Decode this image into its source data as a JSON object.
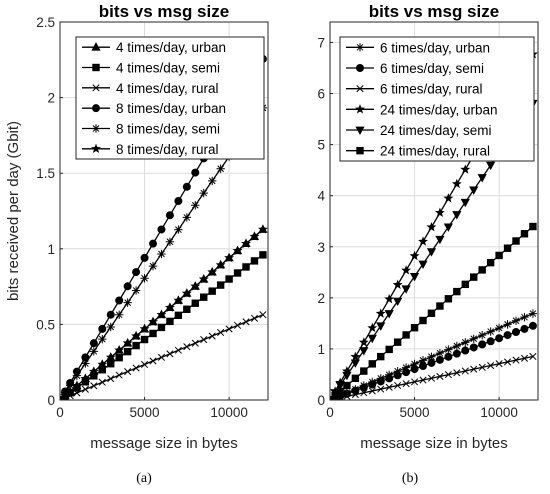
{
  "chart_data": [
    {
      "type": "line",
      "title": "bits vs msg size",
      "xlabel": "message size in bytes",
      "ylabel": "bits received per day (Gbit)",
      "xlim": [
        0,
        12300
      ],
      "ylim": [
        0,
        2.5
      ],
      "xticks": [
        0,
        5000,
        10000
      ],
      "xtick_labels": [
        "0",
        "5000",
        "10000"
      ],
      "yticks": [
        0,
        0.5,
        1,
        1.5,
        2,
        2.5
      ],
      "ytick_labels": [
        "0",
        "0.5",
        "1",
        "1.5",
        "2",
        "2.5"
      ],
      "grid": true,
      "legend_position": "top-right",
      "sublabel": "(a)",
      "series": [
        {
          "name": "4 times/day, urban",
          "marker": "triangle",
          "slope_per_10000": 0.94
        },
        {
          "name": "4 times/day, semi",
          "marker": "square",
          "slope_per_10000": 0.8
        },
        {
          "name": "4 times/day, rural",
          "marker": "x",
          "slope_per_10000": 0.47
        },
        {
          "name": "8 times/day, urban",
          "marker": "circle",
          "slope_per_10000": 1.88
        },
        {
          "name": "8 times/day, semi",
          "marker": "asterisk",
          "slope_per_10000": 1.61
        },
        {
          "name": "8 times/day, rural",
          "marker": "star",
          "slope_per_10000": 0.94
        }
      ],
      "x": [
        0,
        300,
        600,
        1000,
        1500,
        2000,
        2500,
        3000,
        3500,
        4000,
        4500,
        5000,
        5500,
        6000,
        6500,
        7000,
        7500,
        8000,
        8500,
        9000,
        9500,
        10000,
        10500,
        11000,
        11500,
        12000
      ]
    },
    {
      "type": "line",
      "title": "bits vs msg size",
      "xlabel": "message size in bytes",
      "ylabel": "",
      "xlim": [
        0,
        12300
      ],
      "ylim": [
        0,
        7.4
      ],
      "xticks": [
        0,
        5000,
        10000
      ],
      "xtick_labels": [
        "0",
        "5000",
        "10000"
      ],
      "yticks": [
        0,
        1,
        2,
        3,
        4,
        5,
        6,
        7
      ],
      "ytick_labels": [
        "0",
        "1",
        "2",
        "3",
        "4",
        "5",
        "6",
        "7"
      ],
      "grid": true,
      "legend_position": "top-right",
      "sublabel": "(b)",
      "series": [
        {
          "name": "6 times/day, urban",
          "marker": "asterisk",
          "slope_per_10000": 1.41
        },
        {
          "name": "6 times/day, semi",
          "marker": "circle",
          "slope_per_10000": 1.21
        },
        {
          "name": "6 times/day, rural",
          "marker": "x",
          "slope_per_10000": 0.71
        },
        {
          "name": "24 times/day, urban",
          "marker": "star",
          "slope_per_10000": 5.64
        },
        {
          "name": "24 times/day, semi",
          "marker": "triangle-down",
          "slope_per_10000": 4.84
        },
        {
          "name": "24 times/day, rural",
          "marker": "square",
          "slope_per_10000": 2.83
        }
      ],
      "x": [
        0,
        300,
        600,
        1000,
        1500,
        2000,
        2500,
        3000,
        3500,
        4000,
        4500,
        5000,
        5500,
        6000,
        6500,
        7000,
        7500,
        8000,
        8500,
        9000,
        9500,
        10000,
        10500,
        11000,
        11500,
        12000
      ]
    }
  ]
}
